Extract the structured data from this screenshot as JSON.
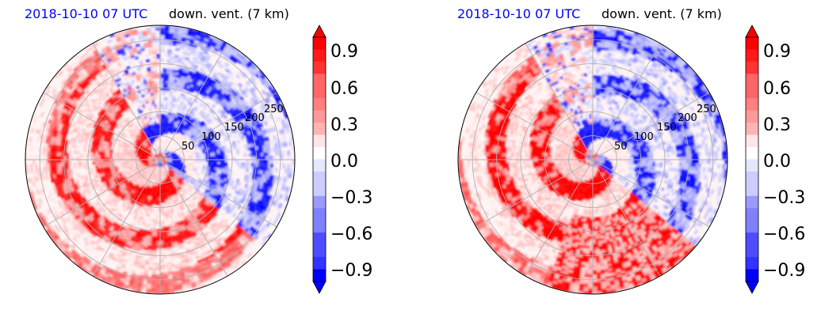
{
  "panels": [
    {
      "title_left": "2018-10-10 07 UTC",
      "title_right": "down. vent. (7 km)",
      "range_ring_labels": [
        "50",
        "100",
        "150",
        "200",
        "250"
      ],
      "colorbar_ticks": [
        "0.9",
        "0.6",
        "0.3",
        "0.0",
        "−0.3",
        "−0.6",
        "−0.9"
      ]
    },
    {
      "title_left": "2018-10-10 07 UTC",
      "title_right": "down. vent. (7 km)",
      "range_ring_labels": [
        "50",
        "100",
        "150",
        "200",
        "250"
      ],
      "colorbar_ticks": [
        "0.9",
        "0.6",
        "0.3",
        "0.0",
        "−0.3",
        "−0.6",
        "−0.9"
      ]
    }
  ],
  "chart_data": [
    {
      "type": "heatmap",
      "projection": "polar",
      "title": "2018-10-10 07 UTC   down. vent. (7 km)",
      "range_rings": [
        50,
        100,
        150,
        200,
        250
      ],
      "colorbar": {
        "min": -1.0,
        "max": 1.0,
        "ticks": [
          0.9,
          0.6,
          0.3,
          0.0,
          -0.3,
          -0.6,
          -0.9
        ],
        "extend": "both",
        "colormap": "bwr",
        "colors": {
          "negative": "#0000ff",
          "zero": "#ffffff",
          "positive": "#ff0000"
        }
      },
      "grid": true
    },
    {
      "type": "heatmap",
      "projection": "polar",
      "title": "2018-10-10 07 UTC   down. vent. (7 km)",
      "range_rings": [
        50,
        100,
        150,
        200,
        250
      ],
      "colorbar": {
        "min": -1.0,
        "max": 1.0,
        "ticks": [
          0.9,
          0.6,
          0.3,
          0.0,
          -0.3,
          -0.6,
          -0.9
        ],
        "extend": "both",
        "colormap": "bwr",
        "colors": {
          "negative": "#0000ff",
          "zero": "#ffffff",
          "positive": "#ff0000"
        }
      },
      "grid": true
    }
  ]
}
